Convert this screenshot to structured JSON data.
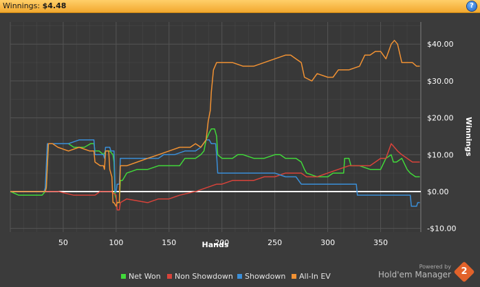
{
  "header": {
    "title_label": "Winnings:",
    "title_value": "$4.48",
    "help_icon": "?"
  },
  "branding": {
    "powered_by": "Powered by",
    "product": "Hold'em Manager",
    "logo_digit": "2"
  },
  "colors": {
    "background": "#3b3b3b",
    "grid": "#555555",
    "zero_line": "#ffffff",
    "net_won": "#41d93a",
    "non_showdown": "#d9433a",
    "showdown": "#3a8fd9",
    "all_in_ev": "#f29233"
  },
  "chart_data": {
    "type": "line",
    "xlabel": "Hands",
    "ylabel": "Winnings",
    "xlim": [
      0,
      388
    ],
    "ylim": [
      -11,
      46
    ],
    "x_ticks": [
      50,
      100,
      150,
      200,
      250,
      300,
      350
    ],
    "y_ticks": [
      -10,
      0,
      10,
      20,
      30,
      40
    ],
    "y_tick_labels": [
      "-$10.00",
      "$0.00",
      "$10.00",
      "$20.00",
      "$30.00",
      "$40.00"
    ],
    "grid": true,
    "legend_position": "bottom",
    "series": [
      {
        "name": "Net Won",
        "color": "#41d93a",
        "points": [
          [
            0,
            0
          ],
          [
            8,
            -1
          ],
          [
            20,
            -1
          ],
          [
            30,
            -1
          ],
          [
            33,
            0
          ],
          [
            34,
            1
          ],
          [
            36,
            13
          ],
          [
            40,
            13
          ],
          [
            45,
            13
          ],
          [
            50,
            13
          ],
          [
            55,
            13
          ],
          [
            60,
            12
          ],
          [
            70,
            12
          ],
          [
            76,
            13
          ],
          [
            79,
            13
          ],
          [
            80,
            11
          ],
          [
            84,
            11
          ],
          [
            88,
            10
          ],
          [
            90,
            11
          ],
          [
            92,
            11
          ],
          [
            94,
            11
          ],
          [
            97,
            10
          ],
          [
            98,
            8
          ],
          [
            99,
            -1
          ],
          [
            100,
            -2
          ],
          [
            101,
            -3
          ],
          [
            103,
            -3
          ],
          [
            104,
            3
          ],
          [
            106,
            3
          ],
          [
            110,
            5
          ],
          [
            120,
            6
          ],
          [
            130,
            6
          ],
          [
            140,
            7
          ],
          [
            150,
            7
          ],
          [
            160,
            7
          ],
          [
            165,
            9
          ],
          [
            170,
            9
          ],
          [
            175,
            9
          ],
          [
            180,
            10
          ],
          [
            183,
            11
          ],
          [
            185,
            14
          ],
          [
            188,
            16
          ],
          [
            190,
            17
          ],
          [
            193,
            17
          ],
          [
            195,
            15
          ],
          [
            196,
            10
          ],
          [
            200,
            9
          ],
          [
            210,
            9
          ],
          [
            215,
            10
          ],
          [
            220,
            10
          ],
          [
            230,
            9
          ],
          [
            240,
            9
          ],
          [
            250,
            10
          ],
          [
            255,
            10
          ],
          [
            260,
            9
          ],
          [
            270,
            9
          ],
          [
            275,
            8
          ],
          [
            278,
            6
          ],
          [
            280,
            5
          ],
          [
            290,
            4
          ],
          [
            300,
            4
          ],
          [
            305,
            5
          ],
          [
            315,
            5
          ],
          [
            316,
            9
          ],
          [
            320,
            9
          ],
          [
            322,
            7
          ],
          [
            330,
            7
          ],
          [
            340,
            6
          ],
          [
            350,
            6
          ],
          [
            355,
            9
          ],
          [
            360,
            10
          ],
          [
            362,
            8
          ],
          [
            365,
            8
          ],
          [
            370,
            9
          ],
          [
            375,
            6
          ],
          [
            378,
            5
          ],
          [
            383,
            4
          ],
          [
            387,
            4
          ]
        ]
      },
      {
        "name": "Non Showdown",
        "color": "#d9433a",
        "points": [
          [
            0,
            0
          ],
          [
            20,
            0
          ],
          [
            35,
            0
          ],
          [
            45,
            0
          ],
          [
            60,
            -1
          ],
          [
            72,
            -1
          ],
          [
            75,
            -1
          ],
          [
            79,
            -1
          ],
          [
            80,
            -1
          ],
          [
            85,
            0
          ],
          [
            95,
            0
          ],
          [
            100,
            -1
          ],
          [
            101,
            -5
          ],
          [
            103,
            -5
          ],
          [
            104,
            -3
          ],
          [
            110,
            -2
          ],
          [
            130,
            -3
          ],
          [
            140,
            -2
          ],
          [
            150,
            -2
          ],
          [
            160,
            -1
          ],
          [
            175,
            0
          ],
          [
            185,
            1
          ],
          [
            195,
            2
          ],
          [
            200,
            2
          ],
          [
            210,
            3
          ],
          [
            220,
            3
          ],
          [
            230,
            3
          ],
          [
            240,
            4
          ],
          [
            250,
            4
          ],
          [
            260,
            5
          ],
          [
            270,
            5
          ],
          [
            275,
            5
          ],
          [
            280,
            4
          ],
          [
            290,
            4
          ],
          [
            300,
            5
          ],
          [
            310,
            6
          ],
          [
            320,
            7
          ],
          [
            330,
            7
          ],
          [
            340,
            7
          ],
          [
            350,
            9
          ],
          [
            355,
            9
          ],
          [
            360,
            13
          ],
          [
            363,
            12
          ],
          [
            366,
            11
          ],
          [
            370,
            10
          ],
          [
            375,
            9
          ],
          [
            380,
            8
          ],
          [
            387,
            8
          ]
        ]
      },
      {
        "name": "Showdown",
        "color": "#3a8fd9",
        "points": [
          [
            0,
            0
          ],
          [
            32,
            0
          ],
          [
            33,
            1
          ],
          [
            35,
            13
          ],
          [
            45,
            13
          ],
          [
            55,
            13
          ],
          [
            65,
            14
          ],
          [
            78,
            14
          ],
          [
            79,
            14
          ],
          [
            80,
            10
          ],
          [
            88,
            10
          ],
          [
            89,
            9
          ],
          [
            90,
            12
          ],
          [
            94,
            12
          ],
          [
            95,
            11
          ],
          [
            98,
            11
          ],
          [
            99,
            0
          ],
          [
            100,
            0
          ],
          [
            101,
            2
          ],
          [
            103,
            2
          ],
          [
            104,
            9
          ],
          [
            110,
            9
          ],
          [
            120,
            9
          ],
          [
            130,
            9
          ],
          [
            140,
            9
          ],
          [
            145,
            10
          ],
          [
            155,
            10
          ],
          [
            165,
            11
          ],
          [
            175,
            11
          ],
          [
            180,
            12
          ],
          [
            185,
            14
          ],
          [
            188,
            14
          ],
          [
            190,
            13
          ],
          [
            194,
            13
          ],
          [
            195,
            10
          ],
          [
            196,
            5
          ],
          [
            210,
            5
          ],
          [
            220,
            5
          ],
          [
            235,
            5
          ],
          [
            240,
            5
          ],
          [
            250,
            5
          ],
          [
            260,
            4
          ],
          [
            270,
            4
          ],
          [
            275,
            2
          ],
          [
            290,
            2
          ],
          [
            300,
            2
          ],
          [
            310,
            2
          ],
          [
            320,
            2
          ],
          [
            327,
            2
          ],
          [
            328,
            -1
          ],
          [
            340,
            -1
          ],
          [
            350,
            -1
          ],
          [
            360,
            -1
          ],
          [
            370,
            -1
          ],
          [
            378,
            -1
          ],
          [
            379,
            -4
          ],
          [
            384,
            -4
          ],
          [
            385,
            -3
          ],
          [
            387,
            -3
          ]
        ]
      },
      {
        "name": "All-In EV",
        "color": "#f29233",
        "points": [
          [
            0,
            0
          ],
          [
            20,
            0
          ],
          [
            33,
            0
          ],
          [
            34,
            1
          ],
          [
            36,
            13
          ],
          [
            40,
            13
          ],
          [
            45,
            12
          ],
          [
            55,
            11
          ],
          [
            65,
            12
          ],
          [
            75,
            11
          ],
          [
            79,
            11
          ],
          [
            80,
            8
          ],
          [
            85,
            7
          ],
          [
            88,
            7
          ],
          [
            89,
            6
          ],
          [
            90,
            11
          ],
          [
            93,
            11
          ],
          [
            94,
            6
          ],
          [
            96,
            4
          ],
          [
            97,
            -3
          ],
          [
            98,
            -3
          ],
          [
            100,
            -4
          ],
          [
            101,
            -3
          ],
          [
            103,
            -3
          ],
          [
            104,
            7
          ],
          [
            110,
            7
          ],
          [
            120,
            8
          ],
          [
            130,
            9
          ],
          [
            140,
            10
          ],
          [
            150,
            11
          ],
          [
            160,
            12
          ],
          [
            165,
            12
          ],
          [
            170,
            12
          ],
          [
            175,
            13
          ],
          [
            180,
            12
          ],
          [
            185,
            14
          ],
          [
            187,
            19
          ],
          [
            189,
            22
          ],
          [
            190,
            27
          ],
          [
            192,
            33
          ],
          [
            195,
            35
          ],
          [
            200,
            35
          ],
          [
            210,
            35
          ],
          [
            220,
            34
          ],
          [
            230,
            34
          ],
          [
            240,
            35
          ],
          [
            250,
            36
          ],
          [
            260,
            37
          ],
          [
            265,
            37
          ],
          [
            270,
            36
          ],
          [
            275,
            35
          ],
          [
            278,
            31
          ],
          [
            285,
            30
          ],
          [
            290,
            32
          ],
          [
            300,
            31
          ],
          [
            305,
            31
          ],
          [
            310,
            33
          ],
          [
            320,
            33
          ],
          [
            330,
            34
          ],
          [
            335,
            37
          ],
          [
            340,
            37
          ],
          [
            345,
            38
          ],
          [
            350,
            38
          ],
          [
            355,
            36
          ],
          [
            360,
            40
          ],
          [
            363,
            41
          ],
          [
            366,
            40
          ],
          [
            370,
            35
          ],
          [
            375,
            35
          ],
          [
            380,
            35
          ],
          [
            384,
            34
          ],
          [
            387,
            34
          ]
        ]
      }
    ]
  }
}
